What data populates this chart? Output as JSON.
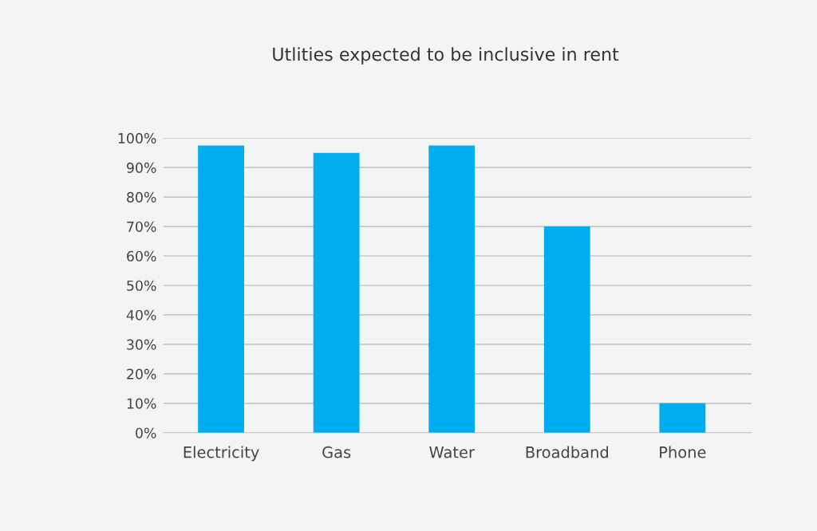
{
  "chart_data": {
    "type": "bar",
    "title": "Utlities expected to be inclusive in rent",
    "categories": [
      "Electricity",
      "Gas",
      "Water",
      "Broadband",
      "Phone"
    ],
    "values": [
      97.5,
      95,
      97.5,
      70,
      10
    ],
    "color": "#00aeef",
    "ylim": [
      0,
      100
    ],
    "yticks": [
      {
        "value": 0,
        "label": "0%"
      },
      {
        "value": 10,
        "label": "10%"
      },
      {
        "value": 20,
        "label": "20%"
      },
      {
        "value": 30,
        "label": "30%"
      },
      {
        "value": 40,
        "label": "40%"
      },
      {
        "value": 50,
        "label": "50%"
      },
      {
        "value": 60,
        "label": "60%"
      },
      {
        "value": 70,
        "label": "70%"
      },
      {
        "value": 80,
        "label": "80%"
      },
      {
        "value": 90,
        "label": "90%"
      },
      {
        "value": 100,
        "label": "100%"
      }
    ],
    "grid": "y"
  }
}
